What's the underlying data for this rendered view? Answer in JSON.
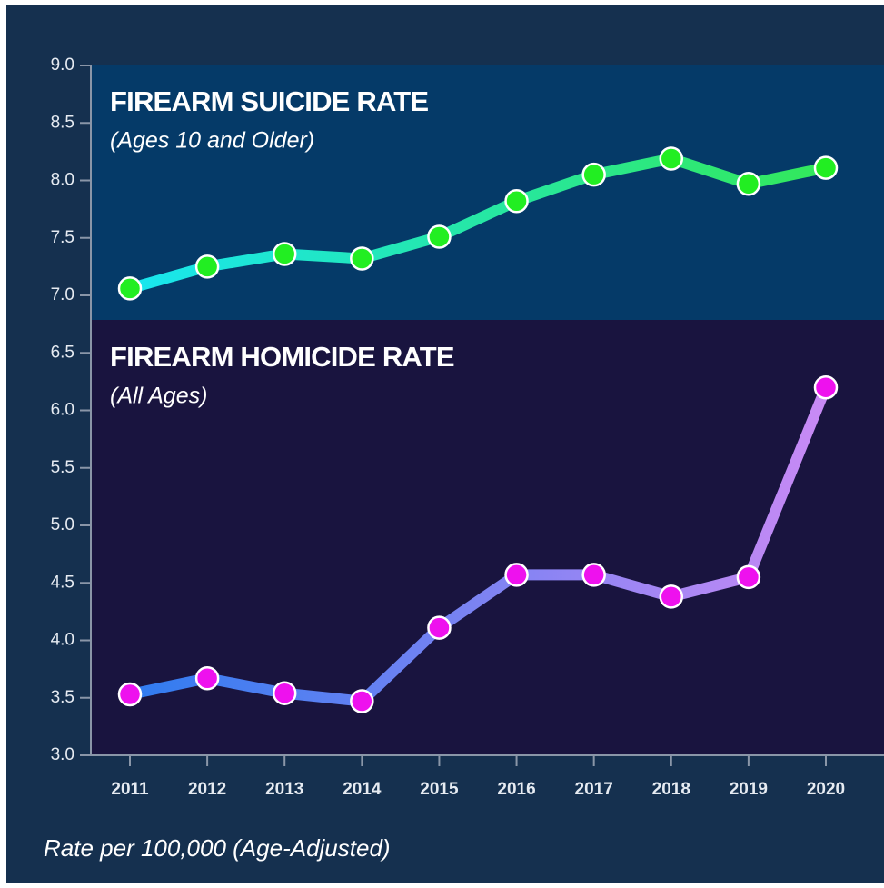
{
  "chart_data": {
    "type": "line",
    "categories": [
      "2011",
      "2012",
      "2013",
      "2014",
      "2015",
      "2016",
      "2017",
      "2018",
      "2019",
      "2020"
    ],
    "series": [
      {
        "name": "FIREARM SUICIDE RATE",
        "note": "(Ages 10 and Older)",
        "color": "#22ee22",
        "line_gradient": [
          "#19e6f0",
          "#33e85a"
        ],
        "values": [
          7.06,
          7.25,
          7.36,
          7.32,
          7.51,
          7.82,
          8.05,
          8.19,
          7.97,
          8.11
        ]
      },
      {
        "name": "FIREARM HOMICIDE RATE",
        "note": "(All Ages)",
        "color": "#ee11ee",
        "line_gradient": [
          "#2f7cf0",
          "#c98af5"
        ],
        "values": [
          3.53,
          3.67,
          3.54,
          3.47,
          4.11,
          4.57,
          4.57,
          4.38,
          4.55,
          6.2
        ]
      }
    ],
    "ylim": [
      3,
      9
    ],
    "yticks": [
      {
        "value": 3,
        "label": "3.0"
      },
      3.5,
      {
        "value": 4,
        "label": "4.0"
      },
      4.5,
      {
        "value": 5,
        "label": "5.0"
      },
      5.5,
      {
        "value": 6,
        "label": "6.0"
      },
      6.5,
      {
        "value": 7,
        "label": "7.0"
      },
      7.5,
      {
        "value": 8,
        "label": "8.0"
      },
      8.5,
      {
        "value": 9,
        "label": "9.0"
      }
    ],
    "xlabel": "Rate per 100,000 (Age-Adjusted)"
  }
}
